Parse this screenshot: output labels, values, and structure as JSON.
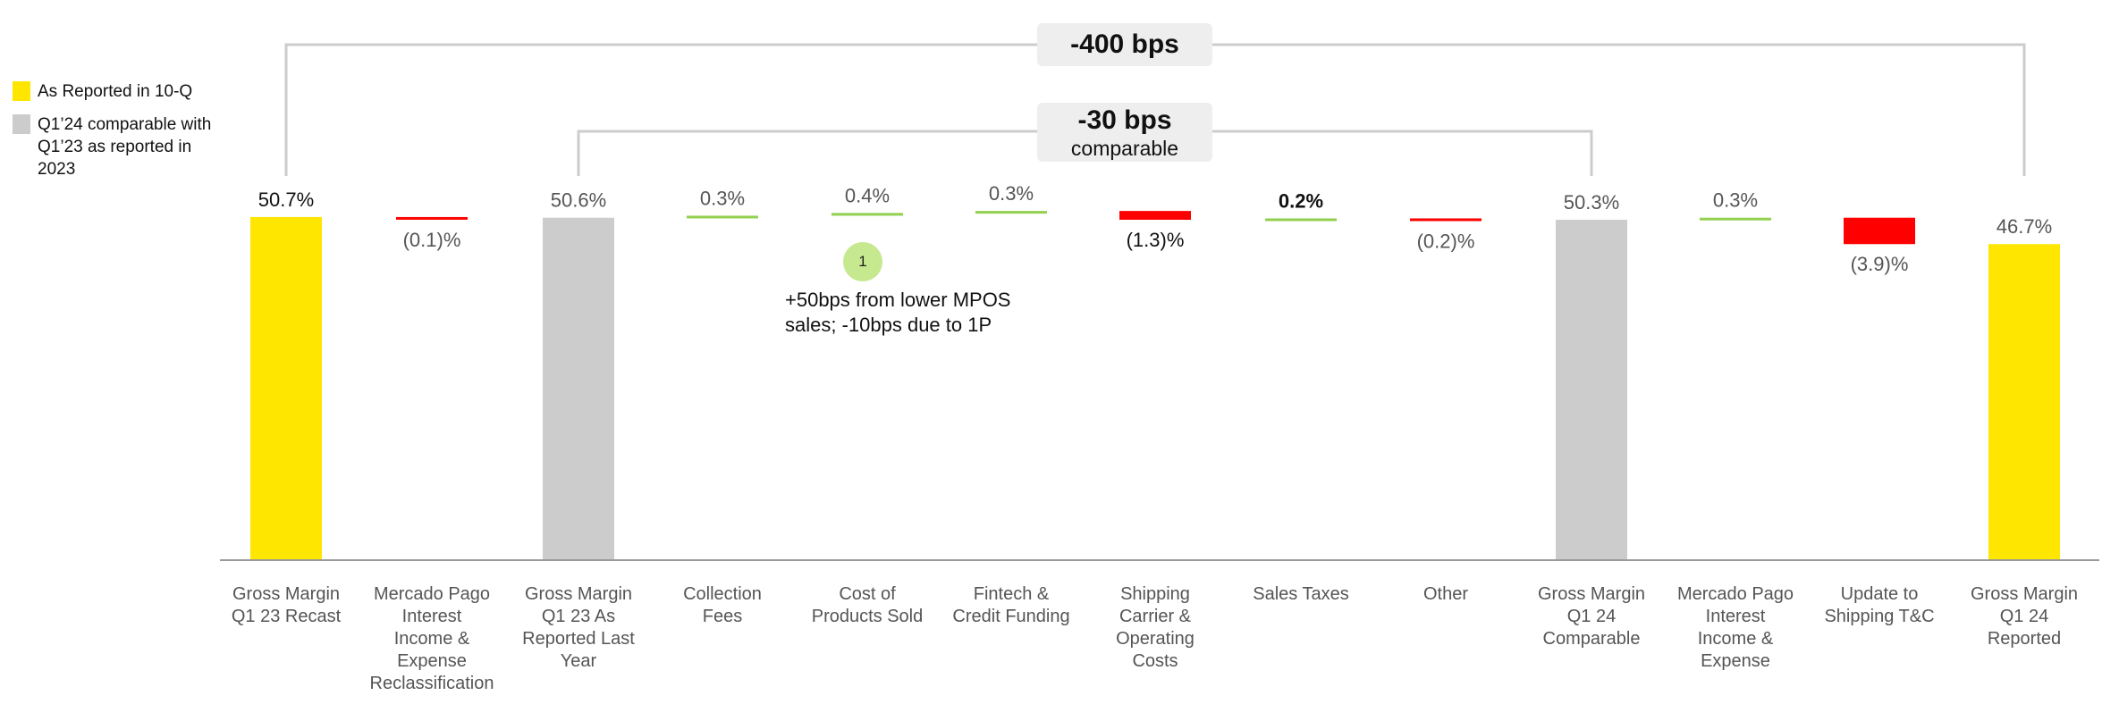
{
  "colors": {
    "reported": "#FFE600",
    "comparable": "#CCCCCC",
    "positive": "#92D050",
    "negative": "#FF0000",
    "bubble": "#C6E98F",
    "bracket": "#CCCCCC",
    "axis": "#999999"
  },
  "legend": [
    {
      "label": "As Reported in 10-Q",
      "color": "#FFE600"
    },
    {
      "label": "Q1’24 comparable with Q1’23 as reported in 2023",
      "color": "#CCCCCC"
    }
  ],
  "brackets": {
    "outer": {
      "label": "-400 bps"
    },
    "inner": {
      "label": "-30 bps",
      "sublabel": "comparable"
    }
  },
  "annotation": {
    "marker": "1",
    "text": "+50bps from lower MPOS sales; -10bps due to 1P"
  },
  "chart_data": {
    "type": "bar",
    "subtype": "waterfall",
    "unit": "%",
    "categories": [
      "Gross Margin Q1 23 Recast",
      "Mercado Pago Interest Income & Expense Reclassification",
      "Gross Margin Q1 23 As Reported Last Year",
      "Collection Fees",
      "Cost of Products Sold",
      "Fintech & Credit Funding",
      "Shipping Carrier & Operating Costs",
      "Sales Taxes",
      "Other",
      "Gross Margin Q1 24 Comparable",
      "Mercado Pago Interest Income & Expense",
      "Update to Shipping T&C",
      "Gross Margin Q1 24 Reported"
    ],
    "category_lines": [
      [
        "Gross Margin",
        "Q1 23 Recast"
      ],
      [
        "Mercado Pago",
        "Interest",
        "Income &",
        "Expense",
        "Reclassification"
      ],
      [
        "Gross Margin",
        "Q1 23 As",
        "Reported Last",
        "Year"
      ],
      [
        "Collection",
        "Fees"
      ],
      [
        "Cost of",
        "Products Sold"
      ],
      [
        "Fintech &",
        "Credit Funding"
      ],
      [
        "Shipping",
        "Carrier &",
        "Operating",
        "Costs"
      ],
      [
        "Sales Taxes"
      ],
      [
        "Other"
      ],
      [
        "Gross Margin",
        "Q1 24",
        "Comparable"
      ],
      [
        "Mercado Pago",
        "Interest",
        "Income &",
        "Expense"
      ],
      [
        "Update to",
        "Shipping T&C"
      ],
      [
        "Gross Margin",
        "Q1 24",
        "Reported"
      ]
    ],
    "values": [
      50.7,
      -0.1,
      50.6,
      0.3,
      0.4,
      0.3,
      -1.3,
      0.2,
      -0.2,
      50.3,
      0.3,
      -3.9,
      46.7
    ],
    "kinds": [
      "reported",
      "delta",
      "comparable",
      "delta",
      "delta",
      "delta",
      "delta",
      "delta",
      "delta",
      "comparable",
      "delta",
      "delta",
      "reported"
    ],
    "data_labels": [
      "50.7%",
      "(0.1)%",
      "50.6%",
      "0.3%",
      "0.4%",
      "0.3%",
      "(1.3)%",
      "0.2%",
      "(0.2)%",
      "50.3%",
      "0.3%",
      "(3.9)%",
      "46.7%"
    ],
    "bold_labels": [
      false,
      false,
      false,
      false,
      false,
      false,
      false,
      true,
      false,
      false,
      false,
      false,
      false
    ],
    "dark_labels": [
      true,
      false,
      false,
      false,
      false,
      false,
      true,
      true,
      false,
      false,
      false,
      false,
      false
    ]
  }
}
